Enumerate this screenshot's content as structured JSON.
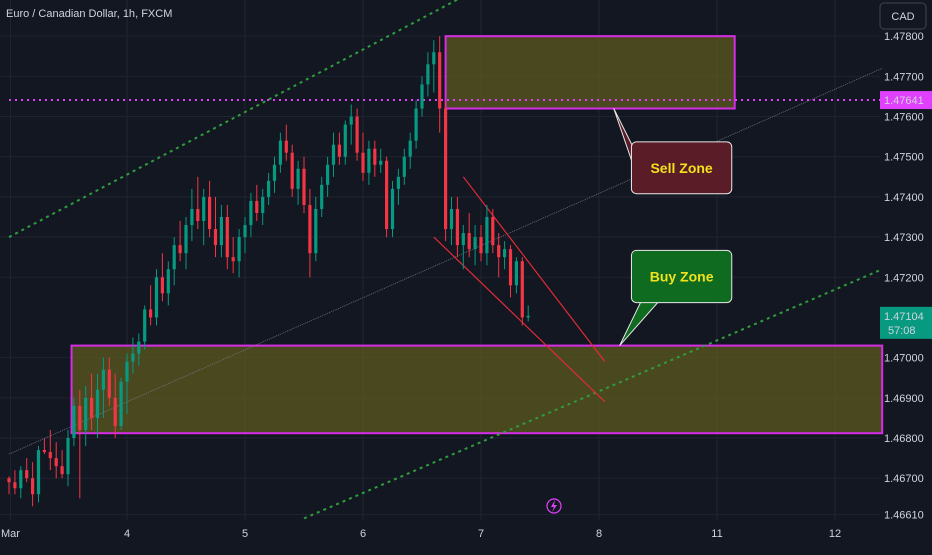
{
  "header": {
    "symbol_name": "Euro / Canadian Dollar",
    "interval": "1h",
    "exchange": "FXCM",
    "separator": ", ",
    "slash_sep": " / "
  },
  "currency_button": "CAD",
  "colors": {
    "background": "#131722",
    "grid": "#1f2430",
    "bull": "#089981",
    "bear": "#f23645",
    "zone_fill": "#5d5a1f",
    "zone_border": "#d62ee6",
    "trend": "#2e9e3c",
    "channel": "#e02b35",
    "sell_box": "#5a1c27",
    "buy_box": "#0f6b1f",
    "label_yellow": "#f2e11d",
    "price_tag_magenta": "#e040fb",
    "price_tag_green": "#089981"
  },
  "chart_data": {
    "type": "candlestick",
    "title": "Euro / Canadian Dollar, 1h, FXCM",
    "y_axis": {
      "ticks": [
        "1.47800",
        "1.47700",
        "1.47600",
        "1.47500",
        "1.47400",
        "1.47300",
        "1.47200",
        "1.47000",
        "1.46900",
        "1.46800",
        "1.46700",
        "1.46610"
      ],
      "tick_values": [
        1.478,
        1.477,
        1.476,
        1.475,
        1.474,
        1.473,
        1.472,
        1.47,
        1.469,
        1.468,
        1.467,
        1.4661
      ],
      "range": [
        1.466,
        1.4789
      ]
    },
    "x_axis": {
      "ticks": [
        {
          "label": "Mar",
          "pos": 0.25
        },
        {
          "label": "4",
          "pos": 20
        },
        {
          "label": "5",
          "pos": 40
        },
        {
          "label": "6",
          "pos": 60
        },
        {
          "label": "7",
          "pos": 80
        },
        {
          "label": "8",
          "pos": 100
        },
        {
          "label": "11",
          "pos": 120
        },
        {
          "label": "12",
          "pos": 140
        }
      ]
    },
    "price_tags": [
      {
        "label": "1.47641",
        "value": 1.47641,
        "kind": "level"
      },
      {
        "label": "1.47104",
        "value": 1.47104,
        "kind": "current",
        "countdown": "57:08"
      }
    ],
    "zones": [
      {
        "name": "sell",
        "x_start": 74,
        "x_end": 123,
        "y_top": 1.478,
        "y_bottom": 1.4762
      },
      {
        "name": "buy",
        "x_start": 10.6,
        "x_end": 148,
        "y_top": 1.4703,
        "y_bottom": 1.46812
      }
    ],
    "callouts": [
      {
        "text": "Sell Zone",
        "kind": "sell",
        "box_x": [
          105.5,
          122.5
        ],
        "box_y": [
          1.47537,
          1.47408
        ],
        "tip": [
          102.5,
          1.4762
        ]
      },
      {
        "text": "Buy  Zone",
        "kind": "buy",
        "box_x": [
          105.5,
          122.5
        ],
        "box_y": [
          1.47267,
          1.47137
        ],
        "tip": [
          103.5,
          1.4703
        ]
      }
    ],
    "lines": [
      {
        "kind": "trend_upper",
        "p1": [
          0,
          1.473
        ],
        "p2": [
          90,
          1.48
        ],
        "style": "dotted"
      },
      {
        "kind": "trend_lower",
        "p1": [
          50,
          1.466
        ],
        "p2": [
          148,
          1.4722
        ],
        "style": "dotted"
      },
      {
        "kind": "mid_channel",
        "p1": [
          0,
          1.4676
        ],
        "p2": [
          148,
          1.4772
        ],
        "style": "thin"
      },
      {
        "kind": "level",
        "p1": [
          0,
          1.47641
        ],
        "p2": [
          148,
          1.47641
        ],
        "style": "magenta_dotted"
      },
      {
        "kind": "channel_top",
        "p1": [
          77,
          1.4745
        ],
        "p2": [
          101,
          1.4699
        ],
        "style": "solid_red"
      },
      {
        "kind": "channel_bottom",
        "p1": [
          72,
          1.473
        ],
        "p2": [
          101,
          1.4689
        ],
        "style": "solid_red"
      }
    ],
    "candles": [
      [
        0,
        1.467,
        1.46705,
        1.4666,
        1.4669
      ],
      [
        1,
        1.4669,
        1.4672,
        1.4666,
        1.46675
      ],
      [
        2,
        1.46675,
        1.4673,
        1.4665,
        1.4672
      ],
      [
        3,
        1.4672,
        1.4675,
        1.4669,
        1.467
      ],
      [
        4,
        1.467,
        1.4674,
        1.4663,
        1.4666
      ],
      [
        5,
        1.4666,
        1.4678,
        1.4664,
        1.4677
      ],
      [
        6,
        1.4677,
        1.468,
        1.4676,
        1.46765
      ],
      [
        7,
        1.46765,
        1.4682,
        1.4672,
        1.4675
      ],
      [
        8,
        1.4675,
        1.4679,
        1.467,
        1.4673
      ],
      [
        9,
        1.4673,
        1.4677,
        1.467,
        1.4671
      ],
      [
        10,
        1.4671,
        1.4682,
        1.4668,
        1.468
      ],
      [
        11,
        1.468,
        1.469,
        1.4678,
        1.4688
      ],
      [
        12,
        1.4688,
        1.4692,
        1.4665,
        1.4682
      ],
      [
        13,
        1.4682,
        1.4693,
        1.4678,
        1.469
      ],
      [
        14,
        1.469,
        1.4696,
        1.4682,
        1.4685
      ],
      [
        15,
        1.4685,
        1.4696,
        1.468,
        1.4692
      ],
      [
        16,
        1.4692,
        1.47,
        1.4685,
        1.4697
      ],
      [
        17,
        1.4697,
        1.47,
        1.4688,
        1.469
      ],
      [
        18,
        1.469,
        1.4696,
        1.468,
        1.4683
      ],
      [
        19,
        1.4683,
        1.4695,
        1.4682,
        1.4694
      ],
      [
        20,
        1.4694,
        1.4701,
        1.4686,
        1.4699
      ],
      [
        21,
        1.4699,
        1.4705,
        1.4696,
        1.4701
      ],
      [
        22,
        1.4701,
        1.4706,
        1.4698,
        1.4704
      ],
      [
        23,
        1.4704,
        1.4713,
        1.4702,
        1.4712
      ],
      [
        24,
        1.4712,
        1.4718,
        1.4708,
        1.471
      ],
      [
        25,
        1.471,
        1.4722,
        1.4708,
        1.472
      ],
      [
        26,
        1.472,
        1.4726,
        1.4714,
        1.4716
      ],
      [
        27,
        1.4716,
        1.4724,
        1.4713,
        1.4722
      ],
      [
        28,
        1.4722,
        1.473,
        1.4718,
        1.4728
      ],
      [
        29,
        1.4728,
        1.4734,
        1.4724,
        1.4726
      ],
      [
        30,
        1.4726,
        1.4735,
        1.4722,
        1.4733
      ],
      [
        31,
        1.4733,
        1.4742,
        1.4729,
        1.4737
      ],
      [
        32,
        1.4737,
        1.4745,
        1.4732,
        1.4734
      ],
      [
        33,
        1.4734,
        1.4742,
        1.4728,
        1.474
      ],
      [
        34,
        1.474,
        1.4744,
        1.473,
        1.4732
      ],
      [
        35,
        1.4732,
        1.474,
        1.4725,
        1.4728
      ],
      [
        36,
        1.4728,
        1.4738,
        1.4725,
        1.4735
      ],
      [
        37,
        1.4735,
        1.4738,
        1.4722,
        1.4725
      ],
      [
        38,
        1.4725,
        1.473,
        1.4721,
        1.4724
      ],
      [
        39,
        1.4724,
        1.4732,
        1.472,
        1.473
      ],
      [
        40,
        1.473,
        1.4735,
        1.4726,
        1.4733
      ],
      [
        41,
        1.4733,
        1.4741,
        1.473,
        1.4739
      ],
      [
        42,
        1.4739,
        1.4743,
        1.4734,
        1.4736
      ],
      [
        43,
        1.4736,
        1.4742,
        1.4733,
        1.474
      ],
      [
        44,
        1.474,
        1.4746,
        1.4738,
        1.4744
      ],
      [
        45,
        1.4744,
        1.475,
        1.4741,
        1.4748
      ],
      [
        46,
        1.4748,
        1.4756,
        1.4746,
        1.4754
      ],
      [
        47,
        1.4754,
        1.4758,
        1.4749,
        1.4751
      ],
      [
        48,
        1.4751,
        1.4753,
        1.474,
        1.4742
      ],
      [
        49,
        1.4742,
        1.4749,
        1.4738,
        1.4747
      ],
      [
        50,
        1.4747,
        1.475,
        1.4736,
        1.4738
      ],
      [
        51,
        1.4738,
        1.4742,
        1.472,
        1.4726
      ],
      [
        52,
        1.4726,
        1.474,
        1.4724,
        1.4737
      ],
      [
        53,
        1.4737,
        1.4745,
        1.4735,
        1.4743
      ],
      [
        54,
        1.4743,
        1.475,
        1.474,
        1.4748
      ],
      [
        55,
        1.4748,
        1.4756,
        1.4745,
        1.4753
      ],
      [
        56,
        1.4753,
        1.4756,
        1.4748,
        1.475
      ],
      [
        57,
        1.475,
        1.4759,
        1.4748,
        1.4758
      ],
      [
        58,
        1.4758,
        1.4763,
        1.4753,
        1.476
      ],
      [
        59,
        1.476,
        1.4762,
        1.4749,
        1.4751
      ],
      [
        60,
        1.4751,
        1.4756,
        1.4744,
        1.4746
      ],
      [
        61,
        1.4746,
        1.4754,
        1.4743,
        1.4752
      ],
      [
        62,
        1.4752,
        1.4754,
        1.4745,
        1.4748
      ],
      [
        63,
        1.4748,
        1.4752,
        1.4746,
        1.4749
      ],
      [
        64,
        1.4749,
        1.475,
        1.473,
        1.4732
      ],
      [
        65,
        1.4732,
        1.4744,
        1.473,
        1.4742
      ],
      [
        66,
        1.4742,
        1.4747,
        1.4738,
        1.4745
      ],
      [
        67,
        1.4745,
        1.4752,
        1.4743,
        1.475
      ],
      [
        68,
        1.475,
        1.4756,
        1.4747,
        1.4754
      ],
      [
        69,
        1.4754,
        1.4764,
        1.4752,
        1.4762
      ],
      [
        70,
        1.4762,
        1.477,
        1.476,
        1.4768
      ],
      [
        71,
        1.4768,
        1.4776,
        1.4765,
        1.4773
      ],
      [
        72,
        1.4773,
        1.4779,
        1.4766,
        1.4776
      ],
      [
        73,
        1.4776,
        1.478,
        1.4756,
        1.4762
      ],
      [
        74,
        1.4762,
        1.4764,
        1.4729,
        1.4732
      ],
      [
        75,
        1.4732,
        1.474,
        1.4728,
        1.4737
      ],
      [
        76,
        1.4737,
        1.474,
        1.4725,
        1.4728
      ],
      [
        77,
        1.4728,
        1.4733,
        1.4722,
        1.4731
      ],
      [
        78,
        1.4731,
        1.4736,
        1.4725,
        1.4727
      ],
      [
        79,
        1.4727,
        1.4733,
        1.4723,
        1.473
      ],
      [
        80,
        1.473,
        1.4733,
        1.4724,
        1.4726
      ],
      [
        81,
        1.4726,
        1.4738,
        1.4723,
        1.4735
      ],
      [
        82,
        1.4735,
        1.4737,
        1.4726,
        1.4728
      ],
      [
        83,
        1.4728,
        1.4731,
        1.472,
        1.4725
      ],
      [
        84,
        1.4725,
        1.4729,
        1.4722,
        1.4727
      ],
      [
        85,
        1.4727,
        1.4728,
        1.4715,
        1.4718
      ],
      [
        86,
        1.4718,
        1.4725,
        1.4716,
        1.4724
      ],
      [
        87,
        1.4724,
        1.4725,
        1.4708,
        1.471
      ],
      [
        88,
        1.471,
        1.4713,
        1.4709,
        1.47104
      ]
    ]
  }
}
